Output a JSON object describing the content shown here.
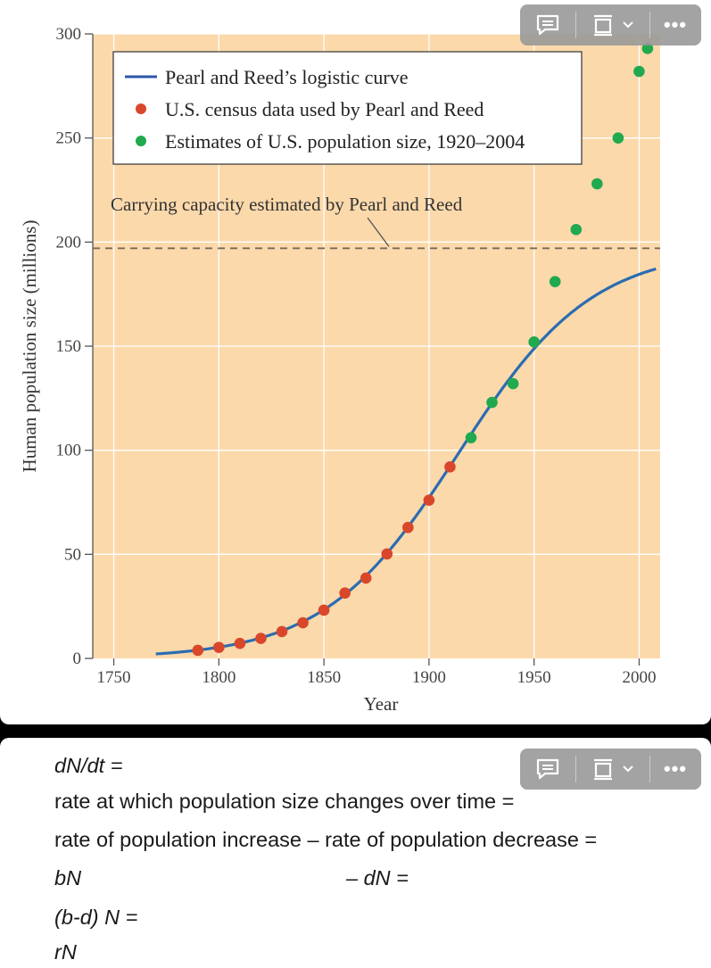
{
  "chart_data": {
    "type": "scatter",
    "xlabel": "Year",
    "ylabel": "Human population size (millions)",
    "xlim": [
      1740,
      2010
    ],
    "ylim": [
      0,
      300
    ],
    "x_ticks": [
      "1750",
      "1800",
      "1850",
      "1900",
      "1950",
      "2000"
    ],
    "x_tick_values": [
      1750,
      1800,
      1850,
      1900,
      1950,
      2000
    ],
    "y_ticks": [
      "0",
      "50",
      "100",
      "150",
      "200",
      "250",
      "300"
    ],
    "y_tick_values": [
      0,
      50,
      100,
      150,
      200,
      250,
      300
    ],
    "legend": [
      {
        "label": "Pearl and Reed’s logistic curve",
        "marker": "line",
        "color": "#2e56a8"
      },
      {
        "label": "U.S. census data used by Pearl and Reed",
        "marker": "dot",
        "color": "#d9472b"
      },
      {
        "label": "Estimates of U.S. population size, 1920–2004",
        "marker": "dot",
        "color": "#20a94e"
      }
    ],
    "annotation": "Carrying capacity estimated by Pearl and Reed",
    "carrying_capacity": 197,
    "series": [
      {
        "name": "U.S. census data used by Pearl and Reed",
        "type": "scatter",
        "color": "#d9472b",
        "x": [
          1790,
          1800,
          1810,
          1820,
          1830,
          1840,
          1850,
          1860,
          1870,
          1880,
          1890,
          1900,
          1910
        ],
        "y": [
          3.9,
          5.3,
          7.2,
          9.6,
          12.9,
          17.1,
          23.2,
          31.4,
          38.6,
          50.2,
          62.9,
          76.0,
          92.0
        ]
      },
      {
        "name": "Estimates of U.S. population size, 1920–2004",
        "type": "scatter",
        "color": "#20a94e",
        "x": [
          1920,
          1930,
          1940,
          1950,
          1960,
          1970,
          1980,
          1990,
          2000,
          2004
        ],
        "y": [
          106,
          123,
          132,
          152,
          181,
          206,
          228,
          250,
          282,
          293
        ]
      },
      {
        "name": "Pearl and Reed’s logistic curve",
        "type": "line",
        "color": "#2b6cb0",
        "model": {
          "K": 197,
          "r": 0.0313,
          "t0": 1914
        }
      }
    ],
    "colors": {
      "plot_bg": "#fbd9ab",
      "gridline": "#ffffff",
      "dashed": "#7a6a5a"
    }
  },
  "notes": {
    "line1": "dN/dt =",
    "line2": "rate at which population size changes over time =",
    "line3": "rate of population increase – rate of population decrease =",
    "line4_a": "bN",
    "line4_b": "– dN =",
    "line5": "(b-d) N =",
    "line6": "rN"
  },
  "toolbar": {
    "comment_icon": "comment-icon",
    "frame_icon": "frame-icon",
    "chevron_icon": "chevron-down-icon",
    "more_label": "•••"
  }
}
